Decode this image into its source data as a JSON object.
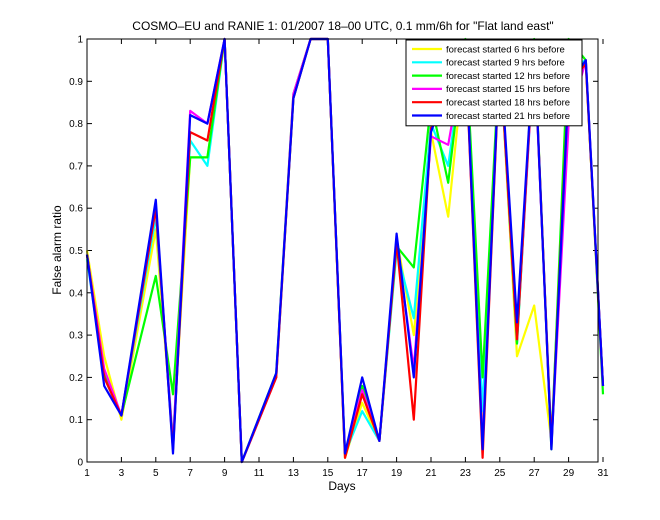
{
  "chart_data": {
    "type": "line",
    "title": "COSMO–EU and RANIE 1: 01/2007 18–00 UTC, 0.1 mm/6h for \"Flat land east\"",
    "xlabel": "Days",
    "ylabel": "False alarm ratio",
    "xlim": [
      1,
      31
    ],
    "ylim": [
      0,
      1
    ],
    "xticks": [
      1,
      3,
      5,
      7,
      9,
      11,
      13,
      15,
      17,
      19,
      21,
      23,
      25,
      27,
      29,
      31
    ],
    "yticks": [
      0,
      0.1,
      0.2,
      0.3,
      0.4,
      0.5,
      0.6,
      0.7,
      0.8,
      0.9,
      1
    ],
    "ytick_labels": [
      "0",
      "0.1",
      "0.2",
      "0.3",
      "0.4",
      "0.5",
      "0.6",
      "0.7",
      "0.8",
      "0.9",
      "1"
    ],
    "legend_position": "top-right",
    "series": [
      {
        "name": "forecast started 6 hrs before",
        "color": "#ffff00",
        "points": [
          [
            1,
            0.5
          ],
          [
            2,
            0.25
          ],
          [
            3,
            0.1
          ],
          [
            5,
            0.55
          ],
          [
            6,
            0.05
          ],
          [
            7,
            0.72
          ],
          [
            8,
            0.72
          ],
          [
            9,
            1
          ],
          [
            10,
            0
          ],
          [
            12,
            0.2
          ],
          [
            13,
            0.86
          ],
          [
            14,
            1
          ],
          [
            15,
            1
          ],
          [
            16,
            0.01
          ],
          [
            17,
            0.14
          ],
          [
            18,
            0.05
          ],
          [
            19,
            0.53
          ],
          [
            20,
            0.3
          ],
          [
            21,
            0.78
          ],
          [
            22,
            0.58
          ],
          [
            23,
            0.98
          ],
          [
            24,
            0.1
          ],
          [
            25,
            0.97
          ],
          [
            26,
            0.25
          ],
          [
            27,
            0.37
          ],
          [
            28,
            0.05
          ],
          [
            29,
            0.91
          ],
          [
            30,
            0.94
          ],
          [
            31,
            0.18
          ]
        ]
      },
      {
        "name": "forecast started 9 hrs before",
        "color": "#00ffff",
        "points": [
          [
            1,
            0.48
          ],
          [
            2,
            0.2
          ],
          [
            3,
            0.11
          ],
          [
            5,
            0.58
          ],
          [
            6,
            0.05
          ],
          [
            7,
            0.76
          ],
          [
            8,
            0.7
          ],
          [
            9,
            1
          ],
          [
            10,
            0
          ],
          [
            12,
            0.2
          ],
          [
            13,
            0.86
          ],
          [
            14,
            1
          ],
          [
            15,
            1
          ],
          [
            16,
            0.02
          ],
          [
            17,
            0.12
          ],
          [
            18,
            0.05
          ],
          [
            19,
            0.5
          ],
          [
            20,
            0.34
          ],
          [
            21,
            0.8
          ],
          [
            22,
            0.7
          ],
          [
            23,
            0.99
          ],
          [
            24,
            0.12
          ],
          [
            25,
            0.97
          ],
          [
            26,
            0.28
          ],
          [
            27,
            0.98
          ],
          [
            28,
            0.05
          ],
          [
            29,
            0.93
          ],
          [
            30,
            0.95
          ],
          [
            31,
            0.18
          ]
        ]
      },
      {
        "name": "forecast started 12 hrs before",
        "color": "#00ff00",
        "points": [
          [
            1,
            0.49
          ],
          [
            2,
            0.21
          ],
          [
            3,
            0.11
          ],
          [
            5,
            0.44
          ],
          [
            6,
            0.16
          ],
          [
            7,
            0.72
          ],
          [
            8,
            0.72
          ],
          [
            9,
            1
          ],
          [
            10,
            0
          ],
          [
            12,
            0.21
          ],
          [
            13,
            0.87
          ],
          [
            14,
            1
          ],
          [
            15,
            1
          ],
          [
            16,
            0.02
          ],
          [
            17,
            0.18
          ],
          [
            18,
            0.05
          ],
          [
            19,
            0.51
          ],
          [
            20,
            0.46
          ],
          [
            21,
            0.85
          ],
          [
            22,
            0.66
          ],
          [
            23,
            1
          ],
          [
            24,
            0.2
          ],
          [
            25,
            0.97
          ],
          [
            26,
            0.28
          ],
          [
            27,
            1
          ],
          [
            28,
            0.03
          ],
          [
            29,
            1
          ],
          [
            30,
            0.95
          ],
          [
            31,
            0.16
          ]
        ]
      },
      {
        "name": "forecast started 15 hrs before",
        "color": "#ff00ff",
        "points": [
          [
            1,
            0.49
          ],
          [
            2,
            0.22
          ],
          [
            3,
            0.11
          ],
          [
            5,
            0.6
          ],
          [
            6,
            0.04
          ],
          [
            7,
            0.83
          ],
          [
            8,
            0.8
          ],
          [
            9,
            1
          ],
          [
            10,
            0
          ],
          [
            12,
            0.2
          ],
          [
            13,
            0.87
          ],
          [
            14,
            1
          ],
          [
            15,
            1
          ],
          [
            16,
            0.02
          ],
          [
            17,
            0.17
          ],
          [
            18,
            0.05
          ],
          [
            19,
            0.52
          ],
          [
            20,
            0.22
          ],
          [
            21,
            0.77
          ],
          [
            22,
            0.75
          ],
          [
            23,
            0.98
          ],
          [
            24,
            0.04
          ],
          [
            25,
            0.97
          ],
          [
            26,
            0.29
          ],
          [
            27,
            0.98
          ],
          [
            28,
            0.04
          ],
          [
            29,
            0.8
          ],
          [
            30,
            0.95
          ],
          [
            31,
            0.18
          ]
        ]
      },
      {
        "name": "forecast started 18 hrs before",
        "color": "#ff0000",
        "points": [
          [
            1,
            0.49
          ],
          [
            2,
            0.2
          ],
          [
            3,
            0.11
          ],
          [
            5,
            0.6
          ],
          [
            6,
            0.03
          ],
          [
            7,
            0.78
          ],
          [
            8,
            0.76
          ],
          [
            9,
            1
          ],
          [
            10,
            0
          ],
          [
            12,
            0.2
          ],
          [
            13,
            0.86
          ],
          [
            14,
            1
          ],
          [
            15,
            1
          ],
          [
            16,
            0.01
          ],
          [
            17,
            0.16
          ],
          [
            18,
            0.05
          ],
          [
            19,
            0.52
          ],
          [
            20,
            0.1
          ],
          [
            21,
            0.79
          ],
          [
            22,
            0.84
          ],
          [
            23,
            0.98
          ],
          [
            24,
            0.01
          ],
          [
            25,
            0.97
          ],
          [
            26,
            0.29
          ],
          [
            27,
            0.99
          ],
          [
            28,
            0.04
          ],
          [
            29,
            0.9
          ],
          [
            30,
            0.94
          ],
          [
            31,
            0.18
          ]
        ]
      },
      {
        "name": "forecast started 21 hrs before",
        "color": "#0000ff",
        "points": [
          [
            1,
            0.49
          ],
          [
            2,
            0.18
          ],
          [
            3,
            0.11
          ],
          [
            5,
            0.62
          ],
          [
            6,
            0.02
          ],
          [
            7,
            0.82
          ],
          [
            8,
            0.8
          ],
          [
            9,
            1
          ],
          [
            10,
            0
          ],
          [
            12,
            0.21
          ],
          [
            13,
            0.86
          ],
          [
            14,
            1
          ],
          [
            15,
            1
          ],
          [
            16,
            0.02
          ],
          [
            17,
            0.2
          ],
          [
            18,
            0.05
          ],
          [
            19,
            0.54
          ],
          [
            20,
            0.2
          ],
          [
            21,
            0.78
          ],
          [
            22,
            0.9
          ],
          [
            23,
            0.99
          ],
          [
            24,
            0.03
          ],
          [
            25,
            0.98
          ],
          [
            26,
            0.33
          ],
          [
            27,
            0.99
          ],
          [
            28,
            0.03
          ],
          [
            29,
            0.89
          ],
          [
            30,
            0.95
          ],
          [
            31,
            0.18
          ]
        ]
      }
    ]
  }
}
